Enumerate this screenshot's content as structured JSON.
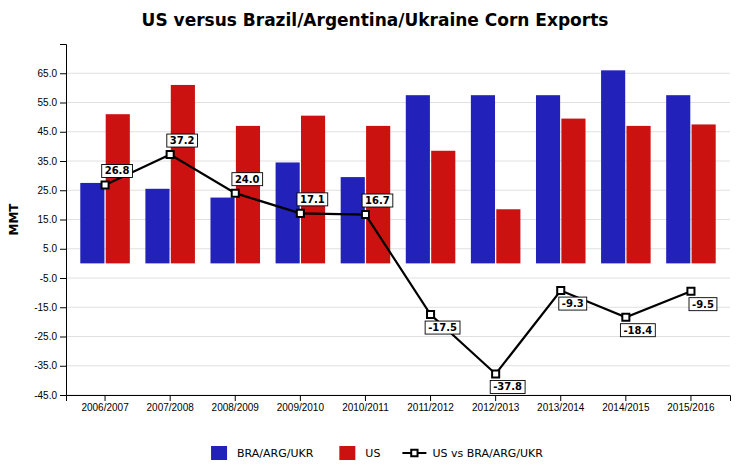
{
  "chart_data": {
    "type": "bar",
    "title": "US versus Brazil/Argentina/Ukraine Corn Exports",
    "categories": [
      "2006/2007",
      "2007/2008",
      "2008/2009",
      "2009/2010",
      "2010/2011",
      "2011/2012",
      "2012/2013",
      "2013/2014",
      "2014/2015",
      "2015/2016"
    ],
    "series": [
      {
        "name": "BRA/ARG/UKR",
        "color": "#2222bb",
        "values": [
          27.5,
          25.5,
          22.5,
          34.5,
          29.5,
          57.5,
          57.5,
          57.5,
          66.0,
          57.5
        ]
      },
      {
        "name": "US",
        "color": "#cc1111",
        "values": [
          51.0,
          61.0,
          47.0,
          50.5,
          47.0,
          38.5,
          18.5,
          49.5,
          47.0,
          47.5
        ]
      },
      {
        "name": "US vs BRA/ARG/UKR",
        "type": "line",
        "color": "#000000",
        "marker": "square",
        "data_labels": true,
        "values": [
          26.8,
          37.2,
          24.0,
          17.1,
          16.7,
          -17.5,
          -37.8,
          -9.3,
          -18.4,
          -9.5
        ],
        "value_labels": [
          "26.8",
          "37.2",
          "24.0",
          "17.1",
          "16.7",
          "-17.5",
          "-37.8",
          "-9.3",
          "-18.4",
          "-9.5"
        ]
      }
    ],
    "ylabel": "MMT",
    "ylim": [
      -45.0,
      75.0
    ],
    "yticks": [
      {
        "value": -45.0,
        "label": "-45.0"
      },
      {
        "value": -35.0,
        "label": "-35.0"
      },
      {
        "value": -25.0,
        "label": "-25.0"
      },
      {
        "value": -15.0,
        "label": "-15.0"
      },
      {
        "value": -5.0,
        "label": "-5.0"
      },
      {
        "value": 5.0,
        "label": "5.0"
      },
      {
        "value": 15.0,
        "label": "15.0"
      },
      {
        "value": 25.0,
        "label": "25.0"
      },
      {
        "value": 35.0,
        "label": "35.0"
      },
      {
        "value": 45.0,
        "label": "45.0"
      },
      {
        "value": 55.0,
        "label": "55.0"
      },
      {
        "value": 65.0,
        "label": "65.0"
      }
    ],
    "grid": true,
    "legend": "bottom"
  }
}
